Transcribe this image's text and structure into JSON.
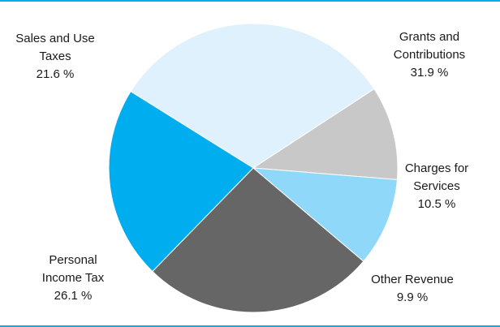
{
  "chart_data": {
    "type": "pie",
    "slices": [
      {
        "label": [
          "Grants and",
          "Contributions"
        ],
        "percent_text": "31.9 %",
        "value": 31.9,
        "color": "#dff1fc"
      },
      {
        "label": [
          "Charges for",
          "Services"
        ],
        "percent_text": "10.5 %",
        "value": 10.5,
        "color": "#c8c8c8"
      },
      {
        "label": [
          "Other Revenue"
        ],
        "percent_text": "9.9 %",
        "value": 9.9,
        "color": "#8fd8fa"
      },
      {
        "label": [
          "Personal",
          "Income Tax"
        ],
        "percent_text": "26.1 %",
        "value": 26.1,
        "color": "#666666"
      },
      {
        "label": [
          "Sales and Use",
          "Taxes"
        ],
        "percent_text": "21.6 %",
        "value": 21.6,
        "color": "#00aeef"
      }
    ],
    "legend": "none",
    "border_color": "#00aeef"
  }
}
